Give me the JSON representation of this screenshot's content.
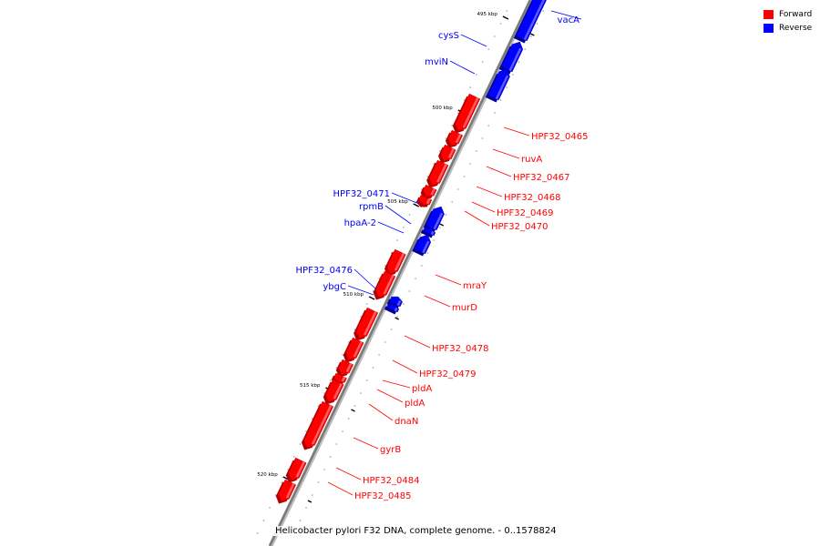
{
  "legend": {
    "forward_label": "Forward",
    "reverse_label": "Reverse",
    "forward_color": "#ff0000",
    "reverse_color": "#0000ff"
  },
  "footer": {
    "caption": "Helicobacter pylori F32 DNA, complete genome. - 0..1578824"
  },
  "scale": {
    "ticks": [
      {
        "kbp": 495,
        "label": "495 kbp"
      },
      {
        "kbp": 500,
        "label": "500 kbp"
      },
      {
        "kbp": 505,
        "label": "505 kbp"
      },
      {
        "kbp": 510,
        "label": "510 kbp"
      },
      {
        "kbp": 515,
        "label": "515 kbp"
      },
      {
        "kbp": 520,
        "label": "520 kbp"
      }
    ]
  },
  "features": [
    {
      "name": "vacA",
      "strand": "reverse"
    },
    {
      "name": "cysS",
      "strand": "reverse"
    },
    {
      "name": "mviN",
      "strand": "reverse"
    },
    {
      "name": "HPF32_0465",
      "strand": "forward"
    },
    {
      "name": "ruvA",
      "strand": "forward"
    },
    {
      "name": "HPF32_0467",
      "strand": "forward"
    },
    {
      "name": "HPF32_0468",
      "strand": "forward"
    },
    {
      "name": "HPF32_0469",
      "strand": "forward"
    },
    {
      "name": "HPF32_0470",
      "strand": "forward"
    },
    {
      "name": "HPF32_0471",
      "strand": "reverse"
    },
    {
      "name": "rpmB",
      "strand": "reverse"
    },
    {
      "name": "hpaA-2",
      "strand": "reverse"
    },
    {
      "name": "mraY",
      "strand": "forward"
    },
    {
      "name": "murD",
      "strand": "forward"
    },
    {
      "name": "HPF32_0476",
      "strand": "reverse"
    },
    {
      "name": "ybgC",
      "strand": "reverse"
    },
    {
      "name": "HPF32_0478",
      "strand": "forward"
    },
    {
      "name": "HPF32_0479",
      "strand": "forward"
    },
    {
      "name": "pldA",
      "strand": "forward"
    },
    {
      "name": "pldA",
      "strand": "forward"
    },
    {
      "name": "dnaN",
      "strand": "forward"
    },
    {
      "name": "gyrB",
      "strand": "forward"
    },
    {
      "name": "HPF32_0484",
      "strand": "forward"
    },
    {
      "name": "HPF32_0485",
      "strand": "forward"
    }
  ]
}
